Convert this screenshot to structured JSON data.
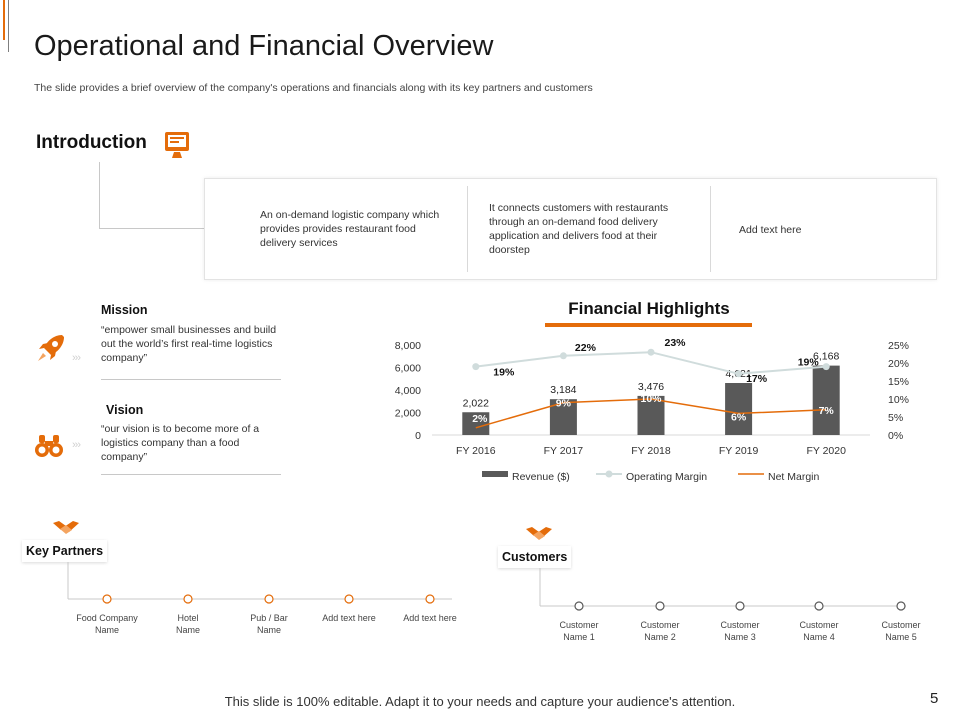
{
  "header": {
    "title": "Operational and Financial Overview",
    "subtitle": "The slide provides a brief overview of the company's operations and financials along with its key partners and customers"
  },
  "introduction": {
    "title": "Introduction",
    "items": [
      "An on-demand logistic company which provides provides restaurant food delivery services",
      "It connects customers with restaurants through an on-demand food delivery application and delivers food at their doorstep",
      "Add text here"
    ]
  },
  "mission": {
    "title": "Mission",
    "text": "“empower small businesses and build out the world’s first real-time logistics company”"
  },
  "vision": {
    "title": "Vision",
    "text": "“our vision is to become more of a logistics company than a food company”"
  },
  "financial_highlights": {
    "title": "Financial Highlights"
  },
  "chart_data": {
    "type": "bar",
    "title": "Financial Highlights",
    "categories": [
      "FY 2016",
      "FY 2017",
      "FY 2018",
      "FY 2019",
      "FY 2020"
    ],
    "series": [
      {
        "name": "Revenue ($)",
        "type": "bar",
        "axis": "left",
        "values": [
          2022,
          3184,
          3476,
          4621,
          6168
        ],
        "labels": [
          "2,022",
          "3,184",
          "3,476",
          "4,621",
          "6,168"
        ]
      },
      {
        "name": "Operating Margin",
        "type": "line",
        "axis": "right",
        "values": [
          19,
          22,
          23,
          17,
          19
        ],
        "labels": [
          "19%",
          "22%",
          "23%",
          "17%",
          "19%"
        ]
      },
      {
        "name": "Net Margin",
        "type": "line",
        "axis": "right",
        "values": [
          2,
          9,
          10,
          6,
          7
        ],
        "labels": [
          "2%",
          "9%",
          "10%",
          "6%",
          "7%"
        ]
      }
    ],
    "y_left": {
      "min": 0,
      "max": 8000,
      "ticks": [
        "0",
        "2,000",
        "4,000",
        "6,000",
        "8,000"
      ],
      "tick_values": [
        0,
        2000,
        4000,
        6000,
        8000
      ]
    },
    "y_right": {
      "min": 0,
      "max": 25,
      "ticks": [
        "0%",
        "5%",
        "10%",
        "15%",
        "20%",
        "25%"
      ],
      "tick_values": [
        0,
        5,
        10,
        15,
        20,
        25
      ]
    },
    "legend": [
      "Revenue ($)",
      "Operating Margin",
      "Net Margin"
    ],
    "legend_position": "bottom",
    "colors": {
      "bar": "#595959",
      "operating": "#d0dcdc",
      "net": "#e46c0a"
    }
  },
  "key_partners": {
    "title": "Key Partners",
    "items": [
      "Food Company Name",
      "Hotel Name",
      "Pub / Bar Name",
      "Add text here",
      "Add text here"
    ]
  },
  "customers": {
    "title": "Customers",
    "items": [
      "Customer Name 1",
      "Customer Name 2",
      "Customer Name 3",
      "Customer Name 4",
      "Customer Name 5"
    ]
  },
  "footer": {
    "text": "This slide is 100% editable. Adapt it to your needs and capture your audience's attention.",
    "page": "5"
  },
  "theme": {
    "accent": "#e46c0a",
    "gray": "#595959"
  },
  "icons": [
    "monitor-icon",
    "rocket-icon",
    "binoculars-icon",
    "handshake-icon"
  ]
}
